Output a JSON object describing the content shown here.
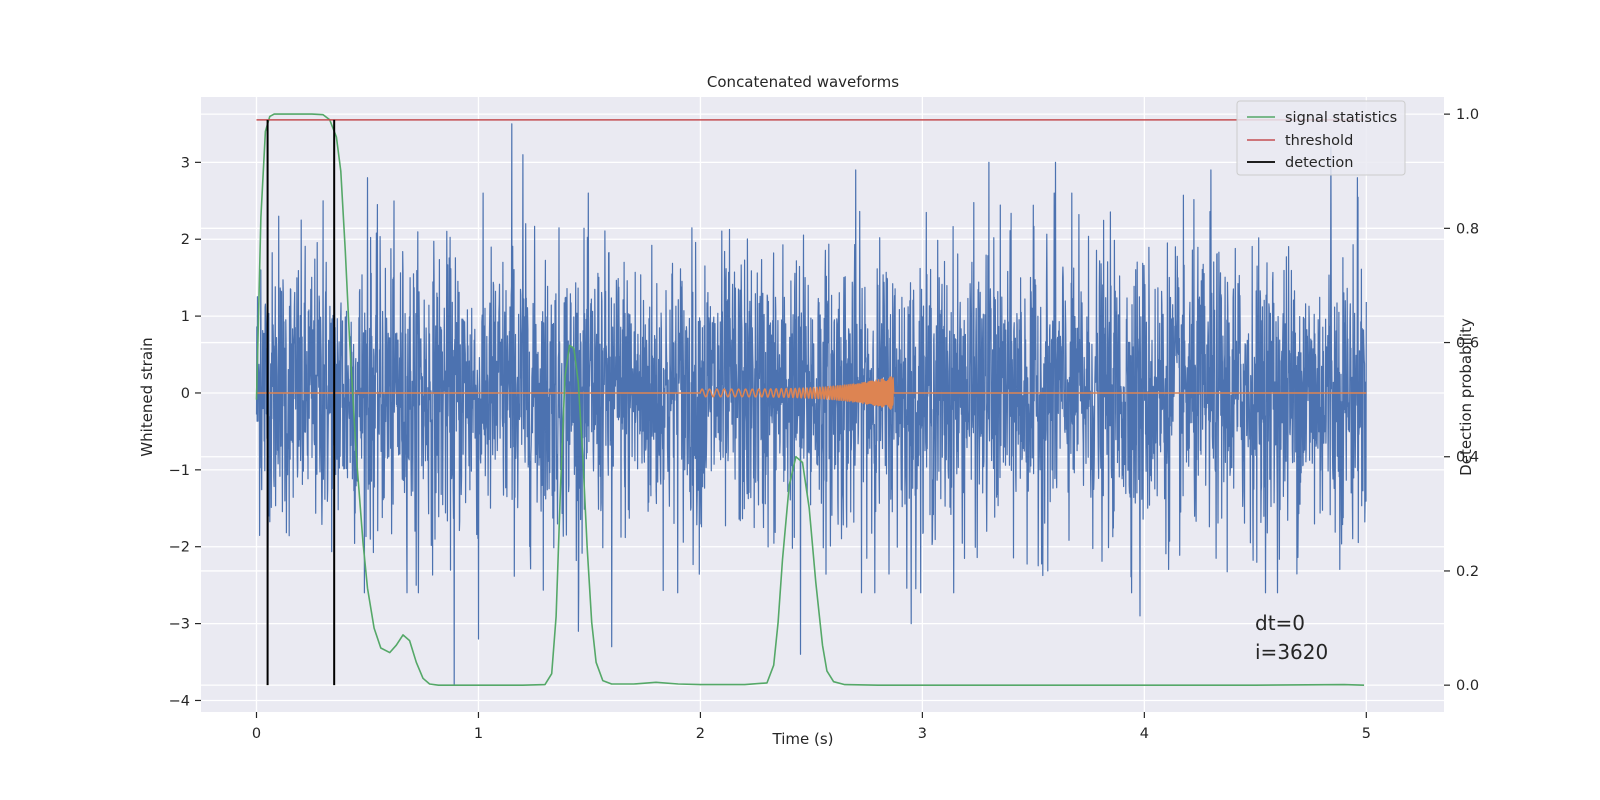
{
  "chart_data": {
    "type": "line",
    "title": "Concatenated waveforms",
    "xlabel": "Time (s)",
    "ylabel": "Whitened strain",
    "y2label": "Detection probability",
    "xlim": [
      -0.25,
      5.35
    ],
    "ylim": [
      -4.15,
      3.85
    ],
    "y2lim": [
      -0.047,
      1.03
    ],
    "x_ticks": [
      0,
      1,
      2,
      3,
      4,
      5
    ],
    "y_ticks": [
      -4,
      -3,
      -2,
      -1,
      0,
      1,
      2,
      3
    ],
    "y2_ticks": [
      0.0,
      0.2,
      0.4,
      0.6,
      0.8,
      1.0
    ],
    "x_tick_labels": [
      "0",
      "1",
      "2",
      "3",
      "4",
      "5"
    ],
    "y_tick_labels": [
      "−4",
      "−3",
      "−2",
      "−1",
      "0",
      "1",
      "2",
      "3"
    ],
    "y2_tick_labels": [
      "0.0",
      "0.2",
      "0.4",
      "0.6",
      "0.8",
      "1.0"
    ],
    "grid": true,
    "legend_position": "top-right",
    "style": "seaborn-darkgrid",
    "colors": {
      "background": "#eaeaf2",
      "grid": "#ffffff",
      "whitened_strain": "#4c72b0",
      "template_waveform": "#dd8452",
      "signal_statistics": "#55a868",
      "threshold": "#c44e52",
      "detection": "#000000"
    },
    "series": [
      {
        "name": "signal statistics",
        "axis": "right",
        "x": [
          0.0,
          0.02,
          0.04,
          0.06,
          0.08,
          0.1,
          0.15,
          0.2,
          0.25,
          0.3,
          0.33,
          0.36,
          0.38,
          0.4,
          0.42,
          0.45,
          0.48,
          0.5,
          0.53,
          0.56,
          0.6,
          0.63,
          0.66,
          0.69,
          0.72,
          0.75,
          0.78,
          0.82,
          0.9,
          1.0,
          1.2,
          1.3,
          1.33,
          1.35,
          1.37,
          1.39,
          1.41,
          1.43,
          1.45,
          1.47,
          1.49,
          1.51,
          1.53,
          1.56,
          1.6,
          1.7,
          1.8,
          1.9,
          2.0,
          2.2,
          2.3,
          2.33,
          2.35,
          2.37,
          2.4,
          2.43,
          2.46,
          2.49,
          2.52,
          2.55,
          2.57,
          2.6,
          2.65,
          2.8,
          3.0,
          3.5,
          4.0,
          4.5,
          4.9,
          4.99
        ],
        "y": [
          0.5,
          0.82,
          0.97,
          0.996,
          1.0,
          1.0,
          1.0,
          1.0,
          1.0,
          0.999,
          0.99,
          0.96,
          0.9,
          0.76,
          0.6,
          0.4,
          0.25,
          0.17,
          0.1,
          0.065,
          0.057,
          0.07,
          0.088,
          0.078,
          0.04,
          0.012,
          0.002,
          0.0,
          0.0,
          0.0,
          0.0,
          0.001,
          0.02,
          0.12,
          0.35,
          0.54,
          0.595,
          0.59,
          0.53,
          0.4,
          0.24,
          0.11,
          0.04,
          0.008,
          0.002,
          0.002,
          0.005,
          0.002,
          0.001,
          0.001,
          0.004,
          0.035,
          0.11,
          0.22,
          0.35,
          0.4,
          0.39,
          0.31,
          0.18,
          0.07,
          0.025,
          0.006,
          0.001,
          0.0,
          0.0,
          0.0,
          0.0,
          0.0,
          0.001,
          0.0
        ]
      },
      {
        "name": "threshold",
        "axis": "right",
        "x": [
          0.0,
          4.99
        ],
        "y": [
          0.99,
          0.99
        ]
      },
      {
        "name": "detection",
        "axis": "right",
        "x_events": [
          0.05,
          0.35
        ],
        "y_range": [
          0.0,
          0.99
        ]
      },
      {
        "axis": "left",
        "kind": "noise",
        "x_range": [
          0.0,
          5.0
        ],
        "typical_amplitude": 0.9,
        "y_extremes": [
          -3.8,
          3.5
        ],
        "peak_x": [
          0.02,
          0.1,
          0.3,
          0.5,
          0.72,
          0.89,
          1.0,
          1.15,
          1.2,
          1.45,
          1.6,
          2.45,
          2.7,
          2.95,
          3.3,
          3.6,
          3.98,
          4.3,
          4.6,
          4.84,
          4.96
        ],
        "peak_y": [
          1.6,
          2.3,
          2.5,
          2.8,
          -2.5,
          -3.8,
          -3.2,
          3.5,
          3.1,
          -3.1,
          -3.3,
          -3.4,
          2.9,
          -3.0,
          3.0,
          3.0,
          -2.9,
          2.9,
          -2.6,
          3.2,
          2.8
        ]
      },
      {
        "axis": "left",
        "kind": "chirp",
        "x_range": [
          0.0,
          5.0
        ],
        "chirp_start": 2.0,
        "chirp_end": 2.87,
        "start_amplitude": 0.05,
        "peak_amplitude": 0.22,
        "start_freq": 30,
        "end_freq": 220
      }
    ],
    "legend": [
      "signal statistics",
      "threshold",
      "detection"
    ],
    "annotations": [
      "dt=0",
      "i=3620"
    ]
  }
}
